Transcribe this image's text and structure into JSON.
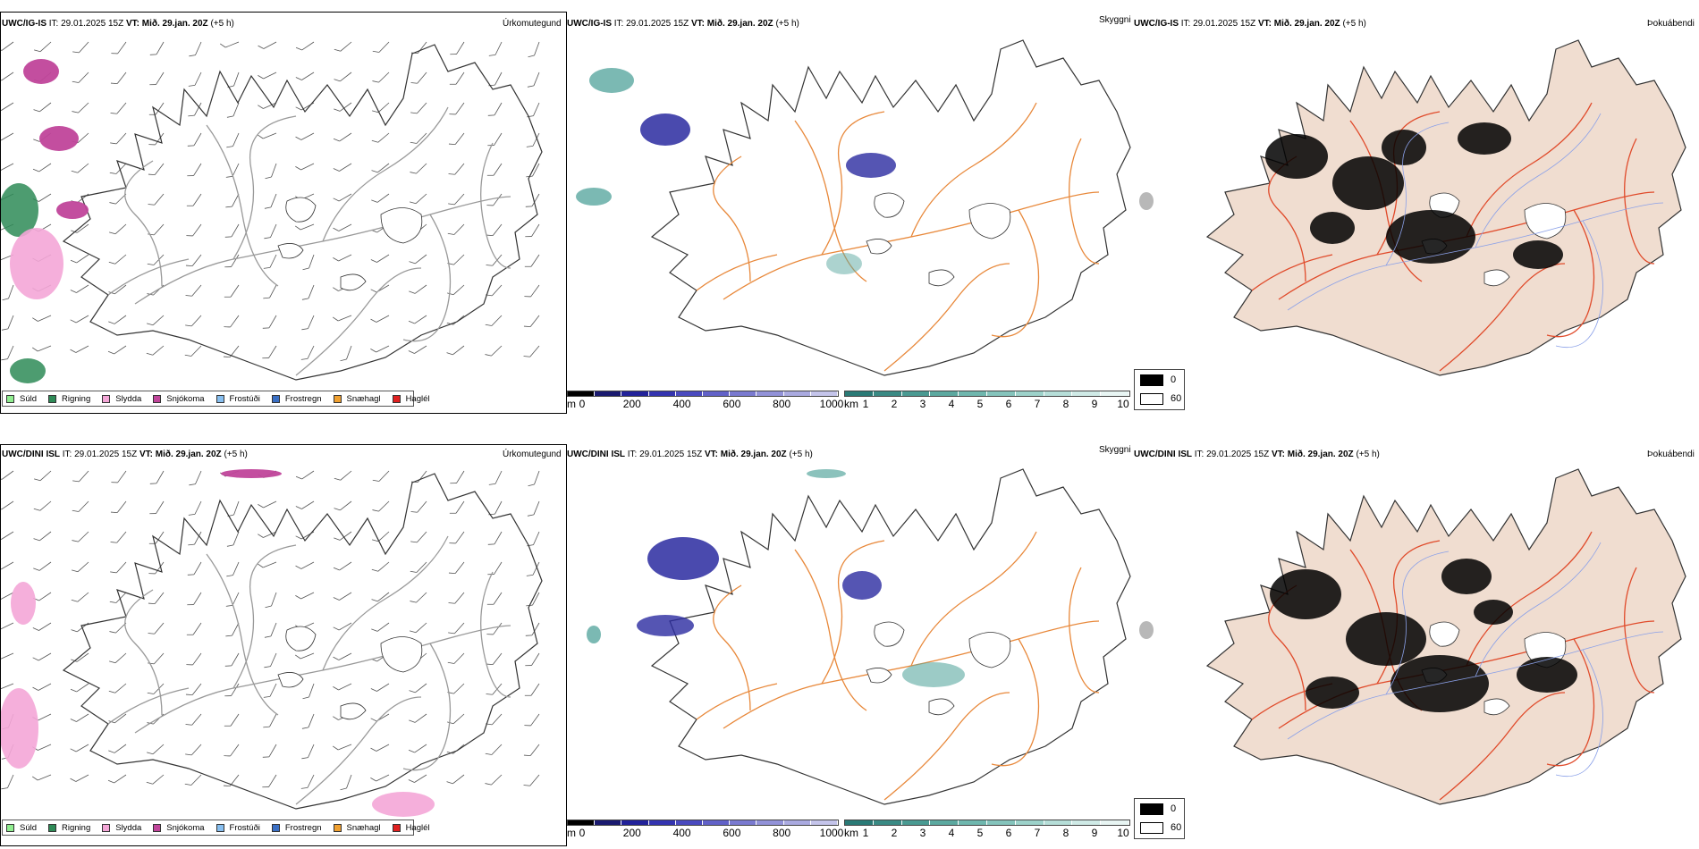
{
  "rows": [
    {
      "model": "UWC/IG-IS",
      "it_label": "IT:",
      "it_value": "29.01.2025 15Z",
      "vt_label": "VT:",
      "vt_value": "Mið. 29.jan. 20Z",
      "lead": "(+5 h)"
    },
    {
      "model": "UWC/DINI ISL",
      "it_label": "IT:",
      "it_value": "29.01.2025 15Z",
      "vt_label": "VT:",
      "vt_value": "Mið. 29.jan. 20Z",
      "lead": "(+5 h)"
    }
  ],
  "columns": {
    "precip_type": "Úrkomutegund",
    "visibility": "Skyggni",
    "fog": "Þokuábendi"
  },
  "precip_legend": [
    {
      "label": "Súld",
      "color": "#90ee90"
    },
    {
      "label": "Rigning",
      "color": "#2e8b57"
    },
    {
      "label": "Slydda",
      "color": "#f4a6d7"
    },
    {
      "label": "Snjókoma",
      "color": "#c0459a"
    },
    {
      "label": "Frostúði",
      "color": "#87bff0"
    },
    {
      "label": "Frostregn",
      "color": "#3a6fc4"
    },
    {
      "label": "Snæhagl",
      "color": "#f0a030"
    },
    {
      "label": "Haglél",
      "color": "#e02020"
    }
  ],
  "ceiling_scale": {
    "unit": "m",
    "ticks": [
      "0",
      "200",
      "400",
      "600",
      "800",
      "1000"
    ],
    "colors": [
      "#000000",
      "#1a1a70",
      "#22229a",
      "#3434b0",
      "#4a4abf",
      "#6262c8",
      "#7a7ad0",
      "#9292d8",
      "#aaaae0",
      "#c4c4ea"
    ]
  },
  "visibility_scale": {
    "unit": "km",
    "ticks": [
      "1",
      "2",
      "3",
      "4",
      "5",
      "6",
      "7",
      "8",
      "9",
      "10"
    ],
    "colors": [
      "#2a7a76",
      "#3a8a84",
      "#4a9a92",
      "#5ca9a0",
      "#6fb7ae",
      "#85c4bc",
      "#9dd2ca",
      "#b6ded8",
      "#cfeae6",
      "#e8f5f3"
    ]
  },
  "fog_legend": [
    {
      "label": "0",
      "color": "#000000"
    },
    {
      "label": "60",
      "color": "#ffffff"
    }
  ],
  "colors": {
    "roads": "#e8883a",
    "fog_land": "#f0ddd0",
    "fog_roads": "#e04a2a",
    "rivers": "#8aa0e8",
    "ceiling": "#2a2aa0",
    "visibility": "#5aa8a0",
    "snow": "#c0459a",
    "sleet": "#f4a6d7",
    "rain": "#2e8b57"
  }
}
